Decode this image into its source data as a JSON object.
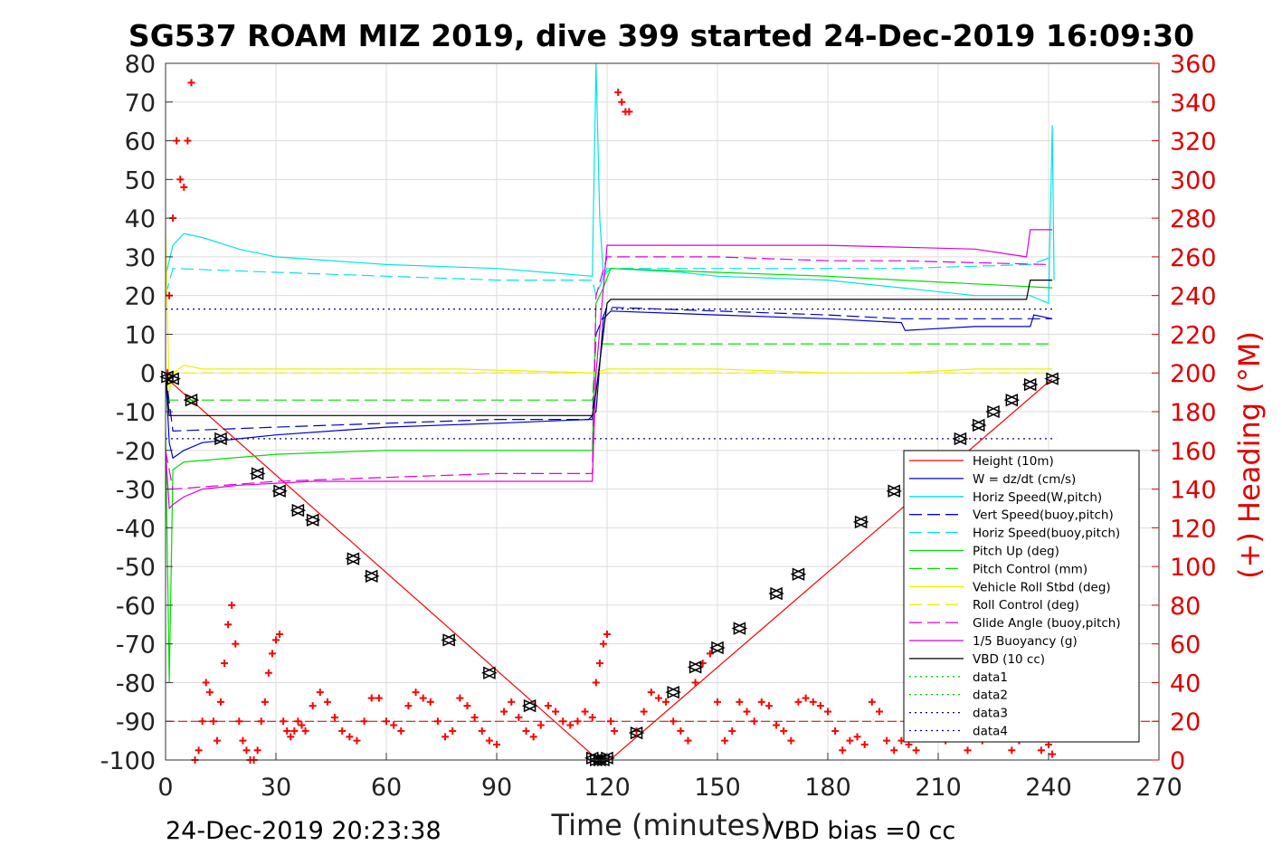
{
  "chart_data": {
    "type": "line",
    "title": "SG537 ROAM MIZ 2019, dive 399 started 24-Dec-2019 16:09:30",
    "xlabel": "Time (minutes)",
    "ylabel_right": "(+) Heading (°M)",
    "xlim": [
      0,
      270
    ],
    "ylim_left": [
      -100,
      80
    ],
    "ylim_right": [
      0,
      360
    ],
    "x_ticks": [
      0,
      30,
      60,
      90,
      120,
      150,
      180,
      210,
      240,
      270
    ],
    "y_ticks_left": [
      80,
      70,
      60,
      50,
      40,
      30,
      20,
      10,
      0,
      -10,
      -20,
      -30,
      -40,
      -50,
      -60,
      -70,
      -80,
      -90,
      -100
    ],
    "y_ticks_right": [
      360,
      340,
      320,
      300,
      280,
      260,
      240,
      220,
      200,
      180,
      160,
      140,
      120,
      100,
      80,
      60,
      40,
      20,
      0
    ],
    "grid": true,
    "legend_position": "bottom-right",
    "footer_left": "24-Dec-2019 20:23:38",
    "footer_right": "VBD bias =0 cc",
    "series": [
      {
        "name": "Height (10m)",
        "color": "#ff0000",
        "dash": "solid",
        "x": [
          0,
          1,
          117,
          118,
          119,
          120,
          122,
          241
        ],
        "y": [
          0,
          -2,
          -99.5,
          -100,
          -100,
          -99.6,
          -99,
          -1.5
        ]
      },
      {
        "name": "W = dz/dt (cm/s)",
        "color": "#0000cc",
        "dash": "solid",
        "x": [
          0,
          1,
          2,
          5,
          10,
          30,
          60,
          90,
          115,
          117,
          119,
          121,
          150,
          180,
          200,
          201,
          220,
          235,
          236,
          241
        ],
        "y": [
          0,
          -18,
          -22,
          -20,
          -18,
          -16,
          -14,
          -13,
          -12,
          -10,
          14,
          16,
          15,
          14,
          13,
          11,
          12,
          12,
          15,
          14
        ]
      },
      {
        "name": "Horiz Speed(W,pitch)",
        "color": "#00e5e5",
        "dash": "solid",
        "x": [
          0,
          2,
          5,
          10,
          20,
          30,
          60,
          90,
          116,
          117,
          118,
          119,
          121,
          140,
          150,
          180,
          200,
          220,
          235,
          240,
          241,
          241.5
        ],
        "y": [
          25,
          33,
          36,
          35,
          32,
          30,
          28,
          27,
          25,
          80,
          40,
          25,
          27,
          26,
          25,
          24,
          22,
          20,
          20,
          18,
          64,
          24
        ]
      },
      {
        "name": "Vert Speed(buoy,pitch)",
        "color": "#0000cc",
        "dash": "dash",
        "x": [
          0,
          2,
          30,
          60,
          90,
          116,
          117,
          120,
          150,
          180,
          200,
          235,
          241
        ],
        "y": [
          0,
          -15,
          -14,
          -13,
          -12,
          -12,
          10,
          17,
          16,
          15,
          14,
          14,
          14
        ]
      },
      {
        "name": "Horiz Speed(buoy,pitch)",
        "color": "#00e5e5",
        "dash": "dash",
        "x": [
          0,
          2,
          30,
          60,
          90,
          116,
          117,
          120,
          150,
          180,
          200,
          235,
          241
        ],
        "y": [
          20,
          27,
          26,
          25,
          24,
          24,
          20,
          27,
          27,
          27,
          27,
          28,
          30
        ]
      },
      {
        "name": "Pitch Up (deg)",
        "color": "#00dd00",
        "dash": "solid",
        "x": [
          0,
          1,
          2,
          5,
          30,
          60,
          90,
          116,
          117,
          119,
          121,
          150,
          180,
          200,
          220,
          241
        ],
        "y": [
          -15,
          -80,
          -25,
          -23,
          -21,
          -20,
          -20,
          -20,
          18,
          22,
          27,
          26,
          25,
          24,
          23,
          22
        ]
      },
      {
        "name": "Pitch Control (mm)",
        "color": "#00dd00",
        "dash": "dash",
        "x": [
          0,
          2,
          116,
          117,
          240
        ],
        "y": [
          -7,
          -7,
          -7,
          7.5,
          7.5
        ]
      },
      {
        "name": "Vehicle Roll Stbd (deg)",
        "color": "#f0f000",
        "dash": "solid",
        "x": [
          0,
          1,
          2,
          5,
          10,
          40,
          80,
          116,
          117,
          120,
          150,
          180,
          200,
          220,
          241
        ],
        "y": [
          36,
          -5,
          0,
          2,
          1,
          1,
          1,
          0,
          0,
          1,
          1,
          0,
          0,
          1,
          1
        ]
      },
      {
        "name": "Roll Control (deg)",
        "color": "#f0f000",
        "dash": "dash",
        "x": [
          0,
          240
        ],
        "y": [
          0,
          0
        ]
      },
      {
        "name": "Glide Angle (buoy,pitch)",
        "color": "#dd00dd",
        "dash": "dash",
        "x": [
          0,
          2,
          30,
          60,
          90,
          116,
          117,
          120,
          150,
          180,
          200,
          240
        ],
        "y": [
          -20,
          -30,
          -28,
          -27,
          -26,
          -26,
          20,
          30,
          30,
          29,
          29,
          28
        ]
      },
      {
        "name": "1/5 Buoyancy (g)",
        "color": "#dd00dd",
        "dash": "solid",
        "x": [
          0,
          1,
          2,
          5,
          10,
          20,
          40,
          116,
          117,
          120,
          180,
          220,
          234,
          235,
          241
        ],
        "y": [
          -20,
          -35,
          -34,
          -32,
          -30,
          -29,
          -28,
          -28,
          0,
          33,
          33,
          32,
          30,
          37,
          37
        ]
      },
      {
        "name": "VBD (10 cc)",
        "color": "#000000",
        "dash": "solid",
        "x": [
          0,
          1,
          116,
          117,
          120,
          121,
          234,
          235,
          241
        ],
        "y": [
          0,
          -11,
          -11,
          -5,
          18,
          19,
          19,
          24,
          24
        ]
      },
      {
        "name": "data1",
        "color": "#00cc00",
        "dash": "dot",
        "x": [],
        "y": []
      },
      {
        "name": "data2",
        "color": "#00cc00",
        "dash": "dot",
        "x": [],
        "y": []
      },
      {
        "name": "data3",
        "color": "#000080",
        "dash": "dot",
        "x": [
          0,
          242
        ],
        "y": [
          16.5,
          16.5
        ]
      },
      {
        "name": "data4",
        "color": "#000080",
        "dash": "dot",
        "x": [
          0,
          242
        ],
        "y": [
          -17,
          -17
        ]
      }
    ],
    "heading": {
      "color": "#ff0000",
      "marker": "+",
      "reference_line": 20,
      "x": [
        0.5,
        1,
        2,
        3,
        4,
        5,
        6,
        7,
        8,
        9,
        10,
        11,
        12,
        13,
        14,
        15,
        16,
        17,
        18,
        19,
        20,
        21,
        22,
        23,
        24,
        25,
        26,
        27,
        28,
        29,
        30,
        31,
        32,
        33,
        34,
        35,
        36,
        37,
        38,
        40,
        42,
        44,
        46,
        48,
        50,
        52,
        54,
        56,
        58,
        60,
        62,
        64,
        66,
        68,
        70,
        72,
        74,
        76,
        78,
        80,
        82,
        84,
        86,
        88,
        90,
        92,
        94,
        96,
        98,
        100,
        102,
        104,
        106,
        108,
        110,
        112,
        114,
        116,
        117,
        118,
        119,
        120,
        121,
        122,
        123,
        124,
        125,
        126,
        128,
        130,
        132,
        134,
        136,
        138,
        140,
        142,
        144,
        146,
        148,
        150,
        152,
        154,
        156,
        158,
        160,
        162,
        164,
        166,
        168,
        170,
        172,
        174,
        176,
        178,
        180,
        182,
        184,
        186,
        188,
        190,
        192,
        194,
        196,
        198,
        200,
        202,
        204,
        206,
        208,
        210,
        212,
        214,
        216,
        218,
        220,
        222,
        224,
        226,
        228,
        230,
        232,
        234,
        236,
        238,
        240,
        241
      ],
      "y": [
        200,
        240,
        280,
        320,
        300,
        296,
        320,
        350,
        0,
        5,
        20,
        40,
        35,
        20,
        10,
        30,
        50,
        70,
        80,
        60,
        20,
        10,
        5,
        0,
        0,
        5,
        20,
        30,
        45,
        55,
        62,
        65,
        20,
        15,
        12,
        15,
        20,
        18,
        15,
        28,
        35,
        30,
        22,
        15,
        12,
        10,
        20,
        32,
        32,
        20,
        18,
        15,
        28,
        35,
        32,
        30,
        20,
        12,
        15,
        32,
        28,
        22,
        15,
        10,
        8,
        25,
        30,
        22,
        15,
        12,
        18,
        28,
        25,
        20,
        18,
        20,
        25,
        22,
        40,
        50,
        60,
        65,
        20,
        15,
        345,
        340,
        335,
        335,
        15,
        25,
        35,
        32,
        30,
        20,
        15,
        10,
        40,
        50,
        55,
        30,
        10,
        15,
        30,
        25,
        20,
        30,
        28,
        18,
        15,
        10,
        30,
        32,
        30,
        28,
        25,
        15,
        5,
        10,
        12,
        8,
        30,
        25,
        10,
        5,
        10,
        8,
        5,
        20,
        30,
        15,
        10,
        25,
        20,
        5,
        15,
        10,
        20,
        15,
        25,
        5,
        10,
        20,
        15,
        5,
        8,
        3
      ]
    },
    "markers": {
      "x": [
        0.5,
        2,
        7,
        15,
        25,
        31,
        36,
        40,
        51,
        56,
        77,
        88,
        99,
        116,
        117,
        118,
        119,
        120,
        128,
        138,
        144,
        150,
        156,
        166,
        172,
        189,
        198,
        216,
        221,
        225,
        230,
        235,
        241
      ],
      "y": [
        -1,
        -1.5,
        -7,
        -17,
        -26,
        -30.5,
        -35.5,
        -38,
        -48,
        -52.5,
        -69,
        -77.5,
        -86,
        -99.5,
        -100,
        -100,
        -100,
        -99.5,
        -93,
        -82.5,
        -76,
        -71,
        -66,
        -57,
        -52,
        -38.5,
        -30.5,
        -17,
        -13.5,
        -10,
        -7,
        -3,
        -1.5
      ]
    }
  }
}
